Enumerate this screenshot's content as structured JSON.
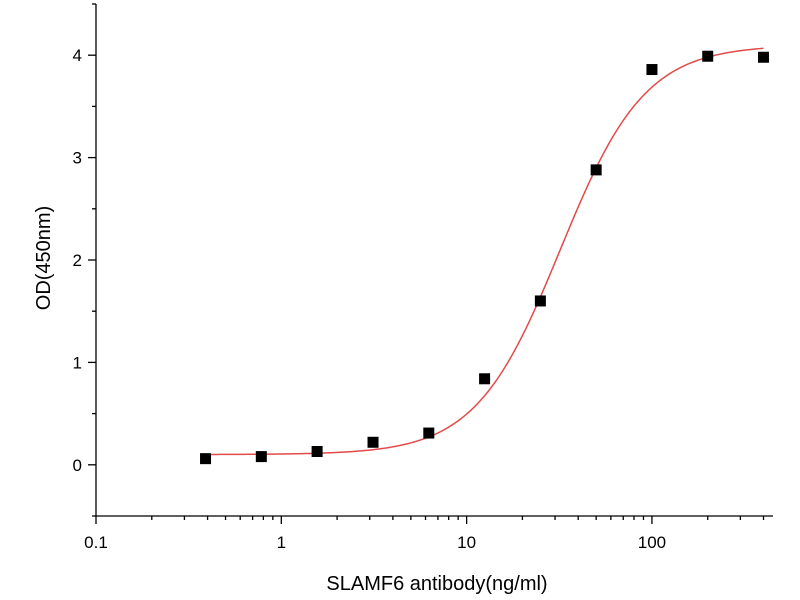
{
  "chart_data": {
    "type": "scatter",
    "title": "",
    "xlabel": "SLAMF6 antibody(ng/ml)",
    "ylabel": "OD(450nm)",
    "xscale": "log",
    "xlim": [
      0.1,
      450
    ],
    "ylim": [
      -0.5,
      4.5
    ],
    "x_ticks": [
      0.1,
      1,
      10,
      100
    ],
    "x_tick_labels": [
      "0.1",
      "1",
      "10",
      "100"
    ],
    "y_ticks": [
      0,
      1,
      2,
      3,
      4
    ],
    "y_tick_labels": [
      "0",
      "1",
      "2",
      "3",
      "4"
    ],
    "grid": false,
    "legend": "none",
    "series": [
      {
        "marker": "square",
        "color": "#000000",
        "x": [
          0.39,
          0.78,
          1.56,
          3.125,
          6.25,
          12.5,
          25,
          50,
          100,
          200,
          400
        ],
        "y": [
          0.06,
          0.08,
          0.13,
          0.22,
          0.31,
          0.84,
          1.6,
          2.88,
          3.86,
          3.99,
          3.98
        ]
      }
    ],
    "fit": {
      "model": "4PL",
      "color": "#e34a4a",
      "bottom": 0.1,
      "top": 4.1,
      "ec50": 32,
      "hill": 1.9
    }
  }
}
